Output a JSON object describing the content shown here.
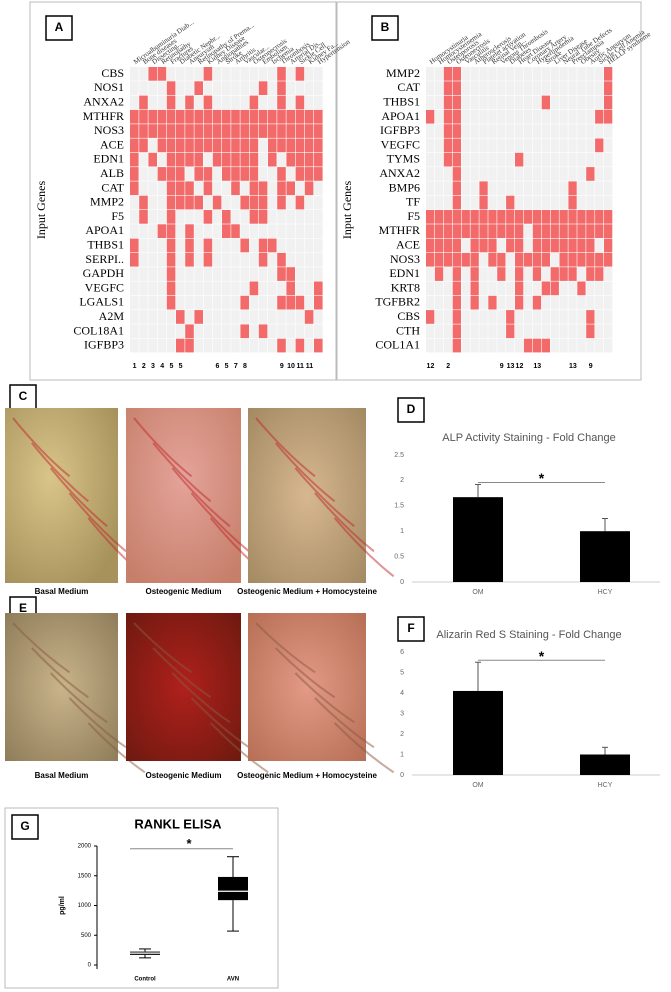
{
  "chart_data": [
    {
      "type": "heatmap",
      "panel": "A",
      "ylabel": "Input Genes",
      "color": "#f26a6a",
      "empty_color": "#f1f1f1",
      "rows": [
        "CBS",
        "NOS1",
        "ANXA2",
        "MTHFR",
        "NOS3",
        "ACE",
        "EDN1",
        "ALB",
        "CAT",
        "MMP2",
        "F5",
        "APOA1",
        "THBS1",
        "SERPI..",
        "GAPDH",
        "VEGFC",
        "LGALS1",
        "A2M",
        "COL18A1",
        "IGFBP3"
      ],
      "columns": [
        "Microalbuminuria Diab...",
        "Bone diseases",
        "Dissecting...",
        "Retinopathy",
        "Fractures",
        "Diabetic Nephr...",
        "Aneurysm",
        "Retinopathy of Prema...",
        "Kidney Disease",
        "Angiopathies",
        "Stroke",
        "Arthritis",
        "Vascular...",
        "Osteonecrosis",
        "Embolism",
        "Ischemia",
        "Thrombosis",
        "Arterial Dis...",
        "Sickle Cell",
        "Kidney Fa...",
        "Hypertension"
      ],
      "column_numbers": [
        1,
        2,
        3,
        4,
        5,
        5,
        null,
        null,
        null,
        6,
        5,
        7,
        8,
        null,
        null,
        null,
        9,
        10,
        11,
        11,
        null
      ],
      "matrix": [
        [
          0,
          0,
          1,
          1,
          0,
          0,
          0,
          0,
          1,
          0,
          0,
          0,
          0,
          0,
          0,
          0,
          1,
          0,
          1,
          0,
          0
        ],
        [
          0,
          0,
          0,
          0,
          1,
          0,
          0,
          1,
          0,
          0,
          0,
          0,
          0,
          0,
          1,
          0,
          1,
          0,
          0,
          0,
          0
        ],
        [
          0,
          1,
          0,
          0,
          1,
          0,
          1,
          0,
          1,
          0,
          0,
          0,
          0,
          1,
          0,
          0,
          1,
          0,
          1,
          0,
          0
        ],
        [
          1,
          1,
          1,
          1,
          1,
          1,
          1,
          1,
          1,
          1,
          1,
          1,
          1,
          1,
          1,
          1,
          1,
          1,
          1,
          1,
          1
        ],
        [
          1,
          1,
          1,
          1,
          1,
          1,
          1,
          1,
          1,
          1,
          1,
          1,
          1,
          1,
          1,
          1,
          1,
          1,
          1,
          1,
          1
        ],
        [
          1,
          1,
          0,
          1,
          1,
          1,
          1,
          1,
          1,
          1,
          1,
          1,
          1,
          1,
          0,
          1,
          1,
          1,
          1,
          1,
          1
        ],
        [
          1,
          0,
          1,
          0,
          1,
          1,
          1,
          1,
          0,
          1,
          1,
          1,
          1,
          1,
          0,
          1,
          0,
          1,
          1,
          1,
          1
        ],
        [
          1,
          0,
          0,
          1,
          1,
          1,
          0,
          1,
          1,
          0,
          1,
          1,
          1,
          1,
          0,
          0,
          1,
          0,
          1,
          1,
          1
        ],
        [
          1,
          0,
          0,
          0,
          1,
          1,
          1,
          0,
          1,
          0,
          0,
          1,
          0,
          1,
          1,
          0,
          1,
          1,
          0,
          1,
          0
        ],
        [
          0,
          1,
          0,
          0,
          1,
          1,
          1,
          1,
          0,
          1,
          0,
          0,
          1,
          1,
          1,
          0,
          1,
          0,
          1,
          0,
          0
        ],
        [
          0,
          1,
          0,
          0,
          1,
          0,
          0,
          0,
          1,
          0,
          1,
          0,
          0,
          1,
          1,
          0,
          0,
          0,
          0,
          0,
          0
        ],
        [
          0,
          0,
          0,
          1,
          1,
          0,
          1,
          0,
          0,
          0,
          1,
          1,
          0,
          0,
          0,
          0,
          0,
          0,
          0,
          0,
          0
        ],
        [
          1,
          0,
          0,
          0,
          1,
          0,
          1,
          0,
          1,
          0,
          0,
          0,
          1,
          0,
          1,
          1,
          0,
          0,
          0,
          0,
          0
        ],
        [
          1,
          0,
          0,
          0,
          1,
          0,
          1,
          0,
          1,
          0,
          0,
          0,
          0,
          0,
          1,
          0,
          1,
          0,
          0,
          0,
          0
        ],
        [
          0,
          0,
          0,
          0,
          1,
          0,
          0,
          0,
          0,
          0,
          0,
          0,
          0,
          0,
          0,
          0,
          1,
          1,
          0,
          0,
          0
        ],
        [
          0,
          0,
          0,
          0,
          1,
          0,
          0,
          0,
          0,
          0,
          0,
          0,
          0,
          1,
          0,
          0,
          0,
          1,
          0,
          0,
          1
        ],
        [
          0,
          0,
          0,
          0,
          1,
          0,
          0,
          0,
          0,
          0,
          0,
          0,
          1,
          0,
          0,
          0,
          1,
          1,
          1,
          0,
          1
        ],
        [
          0,
          0,
          0,
          0,
          0,
          1,
          0,
          1,
          0,
          0,
          0,
          0,
          0,
          0,
          0,
          0,
          0,
          0,
          0,
          1,
          0
        ],
        [
          0,
          0,
          0,
          0,
          0,
          0,
          1,
          0,
          0,
          0,
          0,
          0,
          1,
          0,
          1,
          0,
          0,
          0,
          0,
          0,
          0
        ],
        [
          0,
          0,
          0,
          0,
          0,
          1,
          1,
          0,
          0,
          0,
          0,
          0,
          0,
          0,
          0,
          0,
          1,
          0,
          1,
          0,
          1
        ]
      ]
    },
    {
      "type": "heatmap",
      "panel": "B",
      "ylabel": "Input Genes",
      "color": "#f26a6a",
      "empty_color": "#f1f1f1",
      "rows": [
        "MMP2",
        "CAT",
        "THBS1",
        "APOA1",
        "IGFBP3",
        "VEGFC",
        "TYMS",
        "ANXA2",
        "BMP6",
        "TF",
        "F5",
        "MTHFR",
        "ACE",
        "NOS3",
        "EDN1",
        "KRT8",
        "TGFBR2",
        "CBS",
        "CTH",
        "COL1A1"
      ],
      "columns": [
        "Homocystinuria",
        "Homocysteinemia",
        "Osteoporosis",
        "Osteonecrosis",
        "Vasculitis",
        "Atherosclerosis",
        "Platelet activation",
        "Retinal Vein...",
        "Venous Thrombosis",
        "Diabetes",
        "Heart Disease",
        "Coronary Artery",
        "Hyperlipidemia",
        "Stroke",
        "Liver Disease",
        "Neural Tube Defects",
        "Preeclampsia",
        "Obesity",
        "Aortic Aneurysm",
        "Sickle Cell Anemia",
        "HELLP syndrome"
      ],
      "column_numbers": [
        12,
        null,
        2,
        null,
        null,
        null,
        null,
        null,
        9,
        13,
        12,
        null,
        13,
        null,
        null,
        null,
        13,
        null,
        9,
        null,
        null
      ],
      "matrix": [
        [
          0,
          0,
          1,
          1,
          0,
          0,
          0,
          0,
          0,
          0,
          0,
          0,
          0,
          0,
          0,
          0,
          0,
          0,
          0,
          0,
          1
        ],
        [
          0,
          0,
          1,
          1,
          0,
          0,
          0,
          0,
          0,
          0,
          0,
          0,
          0,
          0,
          0,
          0,
          0,
          0,
          0,
          0,
          1
        ],
        [
          0,
          0,
          1,
          1,
          0,
          0,
          0,
          0,
          0,
          0,
          0,
          0,
          0,
          1,
          0,
          0,
          0,
          0,
          0,
          0,
          1
        ],
        [
          1,
          0,
          1,
          1,
          0,
          0,
          0,
          0,
          0,
          0,
          0,
          0,
          0,
          0,
          0,
          0,
          0,
          0,
          0,
          1,
          1
        ],
        [
          0,
          0,
          1,
          1,
          0,
          0,
          0,
          0,
          0,
          0,
          0,
          0,
          0,
          0,
          0,
          0,
          0,
          0,
          0,
          0,
          0
        ],
        [
          0,
          0,
          1,
          1,
          0,
          0,
          0,
          0,
          0,
          0,
          0,
          0,
          0,
          0,
          0,
          0,
          0,
          0,
          0,
          1,
          0
        ],
        [
          0,
          0,
          1,
          1,
          0,
          0,
          0,
          0,
          0,
          0,
          1,
          0,
          0,
          0,
          0,
          0,
          0,
          0,
          0,
          0,
          0
        ],
        [
          0,
          0,
          0,
          1,
          0,
          0,
          0,
          0,
          0,
          0,
          0,
          0,
          0,
          0,
          0,
          0,
          0,
          0,
          1,
          0,
          0
        ],
        [
          0,
          0,
          0,
          1,
          0,
          0,
          1,
          0,
          0,
          0,
          0,
          0,
          0,
          0,
          0,
          0,
          1,
          0,
          0,
          0,
          0
        ],
        [
          0,
          0,
          0,
          1,
          0,
          0,
          1,
          0,
          0,
          1,
          0,
          0,
          0,
          0,
          0,
          0,
          1,
          0,
          0,
          0,
          0
        ],
        [
          1,
          1,
          1,
          1,
          1,
          1,
          1,
          1,
          1,
          1,
          1,
          1,
          1,
          1,
          1,
          1,
          1,
          1,
          1,
          1,
          1
        ],
        [
          1,
          1,
          1,
          1,
          1,
          1,
          1,
          1,
          1,
          1,
          1,
          0,
          1,
          1,
          1,
          1,
          1,
          1,
          1,
          1,
          1
        ],
        [
          1,
          1,
          1,
          1,
          0,
          1,
          1,
          1,
          0,
          1,
          1,
          0,
          1,
          1,
          1,
          1,
          1,
          1,
          1,
          0,
          1
        ],
        [
          1,
          1,
          1,
          1,
          1,
          1,
          0,
          1,
          1,
          0,
          1,
          1,
          1,
          1,
          0,
          1,
          1,
          1,
          1,
          1,
          1
        ],
        [
          0,
          1,
          0,
          1,
          0,
          1,
          0,
          0,
          1,
          0,
          1,
          0,
          1,
          0,
          1,
          1,
          1,
          0,
          1,
          1,
          0
        ],
        [
          0,
          0,
          0,
          1,
          0,
          1,
          0,
          0,
          0,
          0,
          1,
          0,
          0,
          1,
          1,
          0,
          0,
          1,
          0,
          0,
          0
        ],
        [
          0,
          0,
          0,
          1,
          0,
          1,
          0,
          1,
          0,
          0,
          1,
          0,
          1,
          0,
          0,
          0,
          0,
          0,
          0,
          0,
          0
        ],
        [
          1,
          0,
          0,
          1,
          0,
          0,
          0,
          0,
          0,
          1,
          0,
          0,
          0,
          0,
          0,
          0,
          0,
          0,
          1,
          0,
          0
        ],
        [
          0,
          0,
          0,
          1,
          0,
          0,
          0,
          0,
          0,
          1,
          0,
          0,
          0,
          0,
          0,
          0,
          0,
          0,
          1,
          0,
          0
        ],
        [
          0,
          0,
          0,
          1,
          0,
          0,
          0,
          0,
          0,
          0,
          0,
          1,
          1,
          1,
          0,
          0,
          0,
          0,
          0,
          0,
          0
        ]
      ]
    },
    {
      "type": "bar",
      "panel": "D",
      "title": "ALP Activity Staining - Fold Change",
      "categories": [
        "OM",
        "HCY"
      ],
      "values": [
        1.67,
        1.0
      ],
      "errors": [
        0.25,
        0.25
      ],
      "color": "#000000",
      "annotation": "*",
      "ylim": [
        0,
        2.5
      ],
      "yticks": [
        0,
        0.5,
        1,
        1.5,
        2,
        2.5
      ]
    },
    {
      "type": "bar",
      "panel": "F",
      "title": "Alizarin Red S Staining - Fold Change",
      "categories": [
        "OM",
        "HCY"
      ],
      "values": [
        4.1,
        1.0
      ],
      "errors": [
        1.4,
        0.35
      ],
      "color": "#000000",
      "annotation": "*",
      "ylim": [
        0,
        6
      ],
      "yticks": [
        0,
        1,
        2,
        3,
        4,
        5,
        6
      ]
    },
    {
      "type": "box",
      "panel": "G",
      "title": "RANKL ELISA",
      "ylabel": "pg/ml",
      "categories": [
        "Control",
        "AVN"
      ],
      "min": [
        120,
        570
      ],
      "q1": [
        170,
        1090
      ],
      "median": [
        200,
        1240
      ],
      "q3": [
        225,
        1480
      ],
      "max": [
        270,
        1820
      ],
      "color": "#000000",
      "annotation": "*",
      "ylim": [
        0,
        2000
      ],
      "yticks": [
        0,
        500,
        1000,
        1500,
        2000
      ]
    }
  ],
  "micrographs": [
    {
      "panel": "C",
      "captions": [
        "Basal Medium",
        "Osteogenic Medium",
        "Osteogenic Medium + Homocysteine"
      ]
    },
    {
      "panel": "E",
      "captions": [
        "Basal Medium",
        "Osteogenic Medium",
        "Osteogenic Medium + Homocysteine"
      ]
    }
  ]
}
